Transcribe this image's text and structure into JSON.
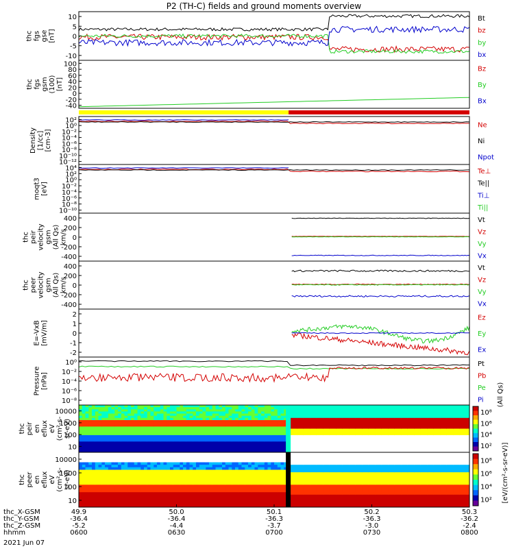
{
  "title": "P2 (TH-C) fields and ground moments overview",
  "date_label": "2021 Jun 07",
  "colors": {
    "black": "#000000",
    "red": "#d40000",
    "green": "#22cc22",
    "blue": "#0000cc",
    "yellow": "#ffff00"
  },
  "chart_data": [
    {
      "id": "p1",
      "type": "line",
      "ylabel": [
        "thc",
        "fgs",
        "gse",
        "[nT]"
      ],
      "yticks": [
        "10",
        "5",
        "0",
        "-5",
        "-10"
      ],
      "ylim": [
        -10,
        12
      ],
      "series": [
        {
          "name": "Bt",
          "color": "black"
        },
        {
          "name": "bz",
          "color": "red"
        },
        {
          "name": "by",
          "color": "green"
        },
        {
          "name": "bx",
          "color": "blue"
        }
      ]
    },
    {
      "id": "p2",
      "type": "line",
      "ylabel": [
        "thc",
        "fgs",
        "gsm",
        "(100)",
        "[nT]"
      ],
      "yticks": [
        "100",
        "80",
        "60",
        "40",
        "20",
        "0",
        "-20",
        "-40"
      ],
      "ylim": [
        -50,
        105
      ],
      "series": [
        {
          "name": "Bz",
          "color": "red"
        },
        {
          "name": "By",
          "color": "green"
        },
        {
          "name": "Bx",
          "color": "blue"
        }
      ]
    },
    {
      "id": "p3",
      "type": "line",
      "ylabel": [
        "Density",
        "[1/cc]",
        "[cm-3]"
      ],
      "yticks": [
        "10²",
        "10⁰",
        "10⁻²",
        "10⁻⁴",
        "10⁻⁶",
        "10⁻⁸",
        "10⁻¹⁰",
        "10⁻¹²"
      ],
      "series": [
        {
          "name": "Ne",
          "color": "red"
        },
        {
          "name": "Ni",
          "color": "black"
        },
        {
          "name": "Npot",
          "color": "blue"
        }
      ]
    },
    {
      "id": "p4",
      "type": "line",
      "ylabel": [
        "moqt3",
        "[eV]"
      ],
      "yticks": [
        "10⁴",
        "10²",
        "10⁰",
        "10⁻²",
        "10⁻⁴",
        "10⁻⁶",
        "10⁻⁸",
        "10⁻¹⁰"
      ],
      "series": [
        {
          "name": "Te⊥",
          "color": "red"
        },
        {
          "name": "Te||",
          "color": "black"
        },
        {
          "name": "Ti⊥",
          "color": "blue"
        },
        {
          "name": "Ti||",
          "color": "green"
        }
      ]
    },
    {
      "id": "p5",
      "type": "line",
      "ylabel": [
        "thc",
        "peir",
        "velocity",
        "gsm",
        "(All Qs)",
        "km/s"
      ],
      "yticks": [
        "400",
        "200",
        "0",
        "-200",
        "-400"
      ],
      "ylim": [
        -480,
        450
      ],
      "series": [
        {
          "name": "Vt",
          "color": "black"
        },
        {
          "name": "Vz",
          "color": "red"
        },
        {
          "name": "Vy",
          "color": "green"
        },
        {
          "name": "Vx",
          "color": "blue"
        }
      ]
    },
    {
      "id": "p6",
      "type": "line",
      "ylabel": [
        "thc",
        "peer",
        "velocity",
        "gsm",
        "(All Qs)",
        "km/s"
      ],
      "yticks": [
        "400",
        "200",
        "0",
        "-200",
        "-400"
      ],
      "ylim": [
        -480,
        450
      ],
      "series": [
        {
          "name": "Vt",
          "color": "black"
        },
        {
          "name": "Vz",
          "color": "red"
        },
        {
          "name": "Vy",
          "color": "green"
        },
        {
          "name": "Vx",
          "color": "blue"
        }
      ]
    },
    {
      "id": "p7",
      "type": "line",
      "ylabel": [
        "E=-VxB",
        "[mV/m]"
      ],
      "yticks": [
        "2",
        "1",
        "0",
        "-1",
        "-2"
      ],
      "ylim": [
        -2.7,
        2.7
      ],
      "series": [
        {
          "name": "Ez",
          "color": "red"
        },
        {
          "name": "Ey",
          "color": "green"
        },
        {
          "name": "Ex",
          "color": "blue"
        }
      ]
    },
    {
      "id": "p8",
      "type": "line",
      "ylabel": [
        "Pressure",
        "[nPa]"
      ],
      "yticks": [
        "10⁰",
        "10⁻²",
        "10⁻⁴",
        "10⁻⁶",
        "10⁻⁸"
      ],
      "series": [
        {
          "name": "Pt",
          "color": "black"
        },
        {
          "name": "Pb",
          "color": "red"
        },
        {
          "name": "Pe",
          "color": "green"
        },
        {
          "name": "Pi",
          "color": "blue"
        }
      ],
      "extra_label": "(All Qs)"
    },
    {
      "id": "p9",
      "type": "heatmap",
      "ylabel": [
        "thc",
        "peir",
        "en",
        "eflux",
        "eV",
        "(cm²-s-",
        "sr-eV)"
      ],
      "yticks": [
        "10000",
        "1000",
        "100",
        "10"
      ]
    },
    {
      "id": "p10",
      "type": "heatmap",
      "ylabel": [
        "thc",
        "peer",
        "en",
        "eflux",
        "eV",
        "(cm²-s-",
        "sr-eV)"
      ],
      "yticks": [
        "10000",
        "1000",
        "100",
        "10"
      ]
    }
  ],
  "colorbars": [
    {
      "ticks": [
        "10⁸",
        "10⁶",
        "10⁴",
        "10²"
      ],
      "label": "[eV/(cm²-s-sr-eV)]"
    },
    {
      "ticks": [
        "10⁸",
        "10⁶",
        "10⁴",
        "10²"
      ],
      "label": "[eV/(cm²-s-sr-eV)]"
    }
  ],
  "x_axis": {
    "rows": [
      {
        "name": "thc_X-GSM",
        "values": [
          "49.9",
          "50.0",
          "50.1",
          "50.2",
          "50.3"
        ]
      },
      {
        "name": "thc_Y-GSM",
        "values": [
          "-36.4",
          "-36.4",
          "-36.3",
          "-36.3",
          "-36.2"
        ]
      },
      {
        "name": "thc_Z-GSM",
        "values": [
          "-5.2",
          "-4.4",
          "-3.7",
          "-3.0",
          "-2.4"
        ]
      },
      {
        "name": "hhmm",
        "values": [
          "0600",
          "0630",
          "0700",
          "0730",
          "0800"
        ]
      }
    ]
  }
}
